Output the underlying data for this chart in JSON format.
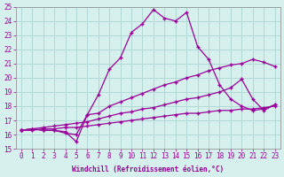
{
  "xlabel": "Windchill (Refroidissement éolien,°C)",
  "bg_color": "#d6f0ee",
  "grid_color": "#b0d8d4",
  "line_color": "#990099",
  "xmin": 0,
  "xmax": 23,
  "ymin": 15,
  "ymax": 25,
  "lines": [
    {
      "x": [
        0,
        1,
        2,
        3,
        4,
        5,
        6,
        7,
        8,
        9,
        10,
        11,
        12,
        13,
        14,
        15,
        16,
        17,
        18,
        19,
        20,
        21,
        22,
        23
      ],
      "y": [
        16.3,
        16.4,
        16.3,
        16.3,
        16.1,
        16.0,
        17.4,
        18.8,
        20.6,
        21.4,
        23.2,
        23.8,
        24.8,
        24.2,
        24.0,
        24.6,
        22.2,
        21.3,
        19.5,
        18.5,
        18.0,
        17.7,
        17.8,
        18.1
      ]
    },
    {
      "x": [
        0,
        1,
        2,
        3,
        4,
        5,
        6,
        7,
        8,
        9,
        10,
        11,
        12,
        13,
        14,
        15,
        16,
        17,
        18,
        19,
        20,
        21,
        22,
        23
      ],
      "y": [
        16.3,
        16.4,
        16.3,
        16.3,
        16.2,
        15.5,
        17.4,
        17.5,
        18.0,
        18.3,
        18.6,
        18.9,
        19.2,
        19.5,
        19.7,
        20.0,
        20.2,
        20.5,
        20.7,
        20.9,
        21.0,
        21.3,
        21.1,
        20.8
      ]
    },
    {
      "x": [
        0,
        1,
        2,
        3,
        4,
        5,
        6,
        7,
        8,
        9,
        10,
        11,
        12,
        13,
        14,
        15,
        16,
        17,
        18,
        19,
        20,
        21,
        22,
        23
      ],
      "y": [
        16.3,
        16.4,
        16.5,
        16.6,
        16.7,
        16.8,
        16.9,
        17.1,
        17.3,
        17.5,
        17.6,
        17.8,
        17.9,
        18.1,
        18.3,
        18.5,
        18.6,
        18.8,
        19.0,
        19.3,
        19.9,
        18.5,
        17.7,
        18.1
      ]
    },
    {
      "x": [
        0,
        1,
        2,
        3,
        4,
        5,
        6,
        7,
        8,
        9,
        10,
        11,
        12,
        13,
        14,
        15,
        16,
        17,
        18,
        19,
        20,
        21,
        22,
        23
      ],
      "y": [
        16.3,
        16.3,
        16.4,
        16.4,
        16.5,
        16.5,
        16.6,
        16.7,
        16.8,
        16.9,
        17.0,
        17.1,
        17.2,
        17.3,
        17.4,
        17.5,
        17.5,
        17.6,
        17.7,
        17.7,
        17.8,
        17.8,
        17.9,
        18.0
      ]
    }
  ]
}
